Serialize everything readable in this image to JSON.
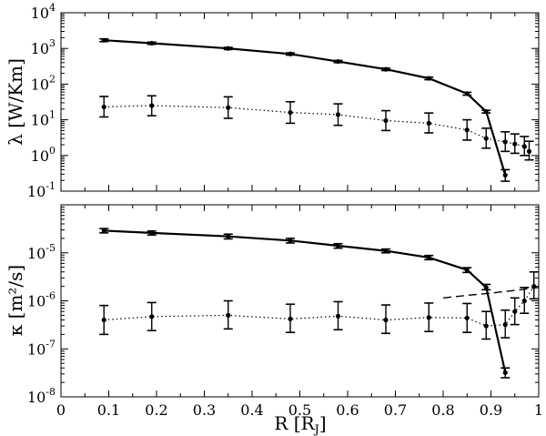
{
  "chart_data": [
    {
      "type": "line",
      "panel": "top",
      "ylabel": "λ [W/Km]",
      "xlabel": "",
      "yscale": "log",
      "ylim": [
        0.1,
        10000
      ],
      "xlim": [
        0,
        1
      ],
      "yticks": [
        {
          "value": 0.1,
          "base": "10",
          "exp": "-1"
        },
        {
          "value": 1,
          "base": "10",
          "exp": "0"
        },
        {
          "value": 10,
          "base": "10",
          "exp": "1"
        },
        {
          "value": 100,
          "base": "10",
          "exp": "2"
        },
        {
          "value": 1000,
          "base": "10",
          "exp": "3"
        },
        {
          "value": 10000,
          "base": "10",
          "exp": "4"
        }
      ],
      "series": [
        {
          "style": "solid",
          "x": [
            0.09,
            0.19,
            0.35,
            0.48,
            0.58,
            0.68,
            0.77,
            0.85,
            0.89,
            0.93
          ],
          "y": [
            1700,
            1400,
            1000,
            700,
            430,
            260,
            145,
            54,
            17,
            0.28
          ],
          "y_low": [
            1550,
            1300,
            930,
            650,
            400,
            240,
            133,
            49,
            15.5,
            0.19
          ],
          "y_high": [
            1850,
            1500,
            1070,
            750,
            460,
            280,
            157,
            59,
            18.5,
            0.4
          ]
        },
        {
          "style": "dotted",
          "x": [
            0.09,
            0.19,
            0.35,
            0.48,
            0.58,
            0.68,
            0.77,
            0.85,
            0.89,
            0.93,
            0.95,
            0.97,
            0.98
          ],
          "y": [
            23,
            25,
            22,
            16,
            14,
            9.5,
            8,
            5.2,
            3.0,
            2.4,
            2.1,
            1.8,
            1.3
          ],
          "y_low": [
            12,
            13,
            11,
            8,
            7,
            5,
            4.3,
            2.7,
            1.6,
            1.3,
            1.15,
            1.0,
            0.75
          ],
          "y_high": [
            45,
            47,
            44,
            32,
            28,
            18,
            15.5,
            10,
            5.8,
            4.6,
            4.0,
            3.4,
            2.5
          ]
        }
      ]
    },
    {
      "type": "line",
      "panel": "bottom",
      "ylabel": "κ [m²/s]",
      "xlabel": "R [RJ]",
      "yscale": "log",
      "ylim": [
        1e-08,
        0.0001
      ],
      "xlim": [
        0,
        1
      ],
      "xticks": [
        "0",
        "0.1",
        "0.2",
        "0.3",
        "0.4",
        "0.5",
        "0.6",
        "0.7",
        "0.8",
        "0.9",
        "1"
      ],
      "yticks": [
        {
          "value": 1e-08,
          "base": "10",
          "exp": "-8"
        },
        {
          "value": 1e-07,
          "base": "10",
          "exp": "-7"
        },
        {
          "value": 1e-06,
          "base": "10",
          "exp": "-6"
        },
        {
          "value": 1e-05,
          "base": "10",
          "exp": "-5"
        }
      ],
      "series": [
        {
          "style": "solid",
          "x": [
            0.09,
            0.19,
            0.35,
            0.48,
            0.58,
            0.68,
            0.77,
            0.85,
            0.89,
            0.93
          ],
          "y": [
            2.9e-05,
            2.6e-05,
            2.2e-05,
            1.8e-05,
            1.4e-05,
            1.1e-05,
            8e-06,
            4.4e-06,
            1.9e-06,
            3.2e-08
          ],
          "y_low": [
            2.6e-05,
            2.35e-05,
            1.95e-05,
            1.6e-05,
            1.25e-05,
            1e-05,
            7.2e-06,
            3.9e-06,
            1.7e-06,
            2.5e-08
          ],
          "y_high": [
            3.2e-05,
            2.85e-05,
            2.45e-05,
            2e-05,
            1.55e-05,
            1.2e-05,
            8.8e-06,
            4.9e-06,
            2.2e-06,
            4e-08
          ]
        },
        {
          "style": "dotted",
          "x": [
            0.09,
            0.19,
            0.35,
            0.48,
            0.58,
            0.68,
            0.77,
            0.85,
            0.89,
            0.93,
            0.95,
            0.97,
            0.99
          ],
          "y": [
            4e-07,
            4.7e-07,
            5e-07,
            4.2e-07,
            4.8e-07,
            4e-07,
            4.5e-07,
            4.4e-07,
            3e-07,
            3.2e-07,
            6e-07,
            1e-06,
            2e-06
          ],
          "y_low": [
            2e-07,
            2.4e-07,
            2.6e-07,
            2.2e-07,
            2.5e-07,
            2.1e-07,
            2.3e-07,
            2.2e-07,
            1.6e-07,
            1.7e-07,
            3.2e-07,
            5.5e-07,
            1.1e-06
          ],
          "y_high": [
            8e-07,
            9.2e-07,
            1e-06,
            8.5e-07,
            9.6e-07,
            8.2e-07,
            9e-07,
            8.8e-07,
            6e-07,
            6.4e-07,
            1.15e-06,
            1.9e-06,
            4e-06
          ]
        },
        {
          "style": "dashed",
          "x": [
            0.8,
            0.85,
            0.9,
            0.95,
            1.0
          ],
          "y": [
            1.15e-06,
            1.3e-06,
            1.45e-06,
            1.65e-06,
            1.9e-06
          ]
        }
      ]
    }
  ]
}
